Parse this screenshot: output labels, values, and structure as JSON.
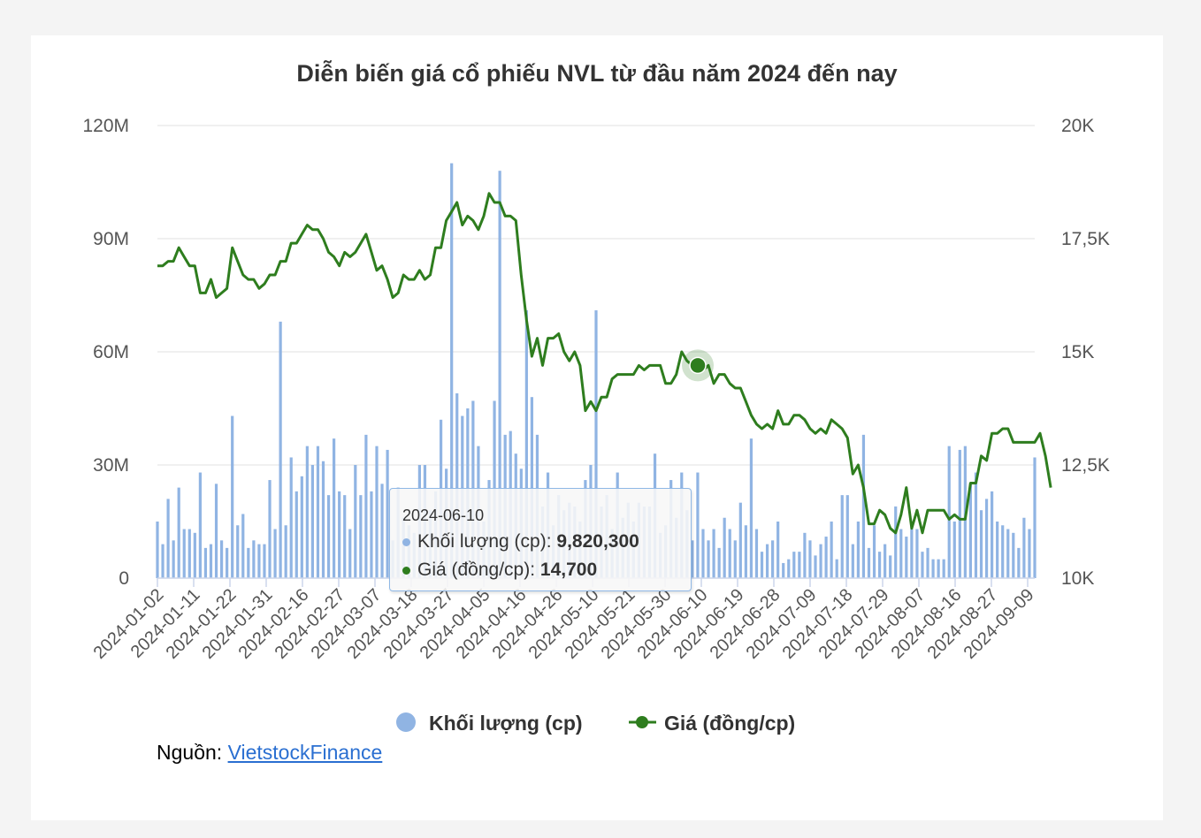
{
  "chart_data": {
    "type": "bar+line",
    "title": "Diễn biến giá cổ phiếu NVL từ đầu năm 2024 đến nay",
    "x_tick_labels": [
      "2024-01-02",
      "2024-01-11",
      "2024-01-22",
      "2024-01-31",
      "2024-02-16",
      "2024-02-27",
      "2024-03-07",
      "2024-03-18",
      "2024-03-27",
      "2024-04-05",
      "2024-04-16",
      "2024-04-26",
      "2024-05-10",
      "2024-05-21",
      "2024-05-30",
      "2024-06-10",
      "2024-06-19",
      "2024-06-28",
      "2024-07-09",
      "2024-07-18",
      "2024-07-29",
      "2024-08-07",
      "2024-08-16",
      "2024-08-27",
      "2024-09-09"
    ],
    "y_left": {
      "ticks": [
        "0",
        "30M",
        "60M",
        "90M",
        "120M"
      ],
      "min": 0,
      "max": 120000000
    },
    "y_right": {
      "ticks": [
        "10K",
        "12,5K",
        "15K",
        "17,5K",
        "20K"
      ],
      "min": 10000,
      "max": 20000
    },
    "grid": true,
    "legend_position": "bottom",
    "series": [
      {
        "name": "Khối lượng (cp)",
        "type": "bar",
        "axis": "left",
        "color": "#90b4e3",
        "values_millions": [
          15,
          9,
          21,
          10,
          24,
          13,
          13,
          12,
          28,
          8,
          9,
          25,
          10,
          8,
          43,
          14,
          17,
          8,
          10,
          9,
          9,
          26,
          13,
          68,
          14,
          32,
          23,
          27,
          35,
          30,
          35,
          31,
          22,
          37,
          23,
          22,
          13,
          30,
          22,
          38,
          23,
          35,
          25,
          34,
          10,
          24,
          16,
          14,
          12,
          30,
          30,
          18,
          23,
          42,
          29,
          110,
          49,
          43,
          45,
          47,
          35,
          15,
          26,
          47,
          108,
          38,
          39,
          33,
          29,
          71,
          48,
          38,
          19,
          28,
          14,
          22,
          18,
          20,
          19,
          15,
          26,
          30,
          71,
          19,
          22,
          13,
          28,
          16,
          20,
          15,
          20,
          19,
          19,
          33,
          12,
          14,
          26,
          16,
          28,
          18,
          10,
          28,
          13,
          10,
          13,
          8,
          16,
          13,
          10,
          20,
          14,
          37,
          13,
          7,
          9,
          10,
          15,
          4,
          5,
          7,
          7,
          12,
          10,
          6,
          9,
          11,
          15,
          5,
          22,
          22,
          9,
          15,
          38,
          8,
          14,
          7,
          9,
          6,
          19,
          13,
          11,
          14,
          13,
          7,
          8,
          5,
          5,
          5,
          35,
          15,
          34,
          35,
          25,
          28,
          18,
          21,
          23,
          15,
          14,
          13,
          12,
          8,
          16,
          13,
          32
        ],
        "visible_sample": {
          "date": "2024-06-10",
          "value": 9820300
        }
      },
      {
        "name": "Giá (đồng/cp)",
        "type": "line",
        "axis": "right",
        "color": "#2e7d1e",
        "values_thousands": [
          16.9,
          16.9,
          17.0,
          17.0,
          17.3,
          17.1,
          16.9,
          16.9,
          16.3,
          16.3,
          16.6,
          16.2,
          16.3,
          16.4,
          17.3,
          17.0,
          16.7,
          16.6,
          16.6,
          16.4,
          16.5,
          16.7,
          16.7,
          17.0,
          17.0,
          17.4,
          17.4,
          17.6,
          17.8,
          17.7,
          17.7,
          17.5,
          17.2,
          17.1,
          16.9,
          17.2,
          17.1,
          17.2,
          17.4,
          17.6,
          17.2,
          16.8,
          16.9,
          16.6,
          16.2,
          16.3,
          16.7,
          16.6,
          16.6,
          16.8,
          16.6,
          16.7,
          17.3,
          17.3,
          17.9,
          18.1,
          18.3,
          17.8,
          18.0,
          17.9,
          17.7,
          18.0,
          18.5,
          18.3,
          18.3,
          18.0,
          18.0,
          17.9,
          16.7,
          15.7,
          14.9,
          15.3,
          14.7,
          15.3,
          15.3,
          15.4,
          15.0,
          14.8,
          15.0,
          14.7,
          13.7,
          13.9,
          13.7,
          14.0,
          14.0,
          14.4,
          14.5,
          14.5,
          14.5,
          14.5,
          14.7,
          14.6,
          14.7,
          14.7,
          14.7,
          14.3,
          14.3,
          14.5,
          15.0,
          14.8,
          14.7,
          14.7,
          14.6,
          14.7,
          14.3,
          14.5,
          14.5,
          14.3,
          14.2,
          14.2,
          13.9,
          13.6,
          13.4,
          13.3,
          13.4,
          13.3,
          13.7,
          13.4,
          13.4,
          13.6,
          13.6,
          13.5,
          13.3,
          13.2,
          13.3,
          13.2,
          13.5,
          13.4,
          13.3,
          13.1,
          12.3,
          12.5,
          12.0,
          11.2,
          11.2,
          11.5,
          11.4,
          11.1,
          11.0,
          11.4,
          12.0,
          11.1,
          11.5,
          11.0,
          11.5,
          11.5,
          11.5,
          11.5,
          11.3,
          11.4,
          11.3,
          11.3,
          12.1,
          12.1,
          12.7,
          12.6,
          13.2,
          13.2,
          13.3,
          13.3,
          13.0,
          13.0,
          13.0,
          13.0,
          13.0,
          13.2,
          12.7,
          12.0
        ],
        "visible_sample": {
          "date": "2024-06-10",
          "value": 14700
        }
      }
    ]
  },
  "tooltip": {
    "date": "2024-06-10",
    "volume_label": "Khối lượng (cp)",
    "volume_value": "9,820,300",
    "price_label": "Giá (đồng/cp)",
    "price_value": "14,700"
  },
  "legend": {
    "volume": "Khối lượng (cp)",
    "price": "Giá (đồng/cp)"
  },
  "source": {
    "label": "Nguồn:",
    "link_text": "VietstockFinance"
  },
  "colors": {
    "bar": "#90b4e3",
    "line": "#2e7d1e",
    "grid": "#e6e6e6",
    "axis_text": "#555555"
  }
}
